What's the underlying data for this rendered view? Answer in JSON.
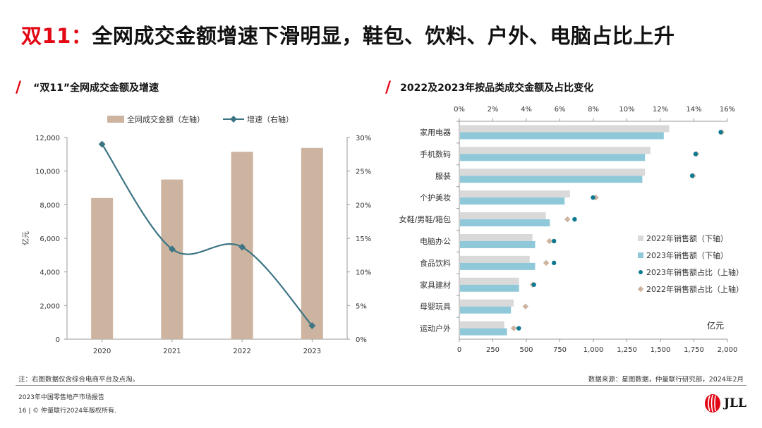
{
  "page": {
    "title_prefix": "双11：",
    "title_rest": "全网成交金额增速下滑明显，鞋包、饮料、户外、电脑占比上升",
    "note_left": "注：右图数据仅含综合电商平台及点淘。",
    "note_right": "数据来源：星图数据，仲量联行研究部，2024年2月",
    "footer_line1": "2023年中国零售地产市场报告",
    "footer_line2": "16 | © 仲量联行2024年版权所有.",
    "logo_text": "JLL",
    "accent_color": "#e30613"
  },
  "chart_data": [
    {
      "type": "bar+line",
      "title": "“双11”全网成交金额及增速",
      "categories": [
        "2020",
        "2021",
        "2022",
        "2023"
      ],
      "series": [
        {
          "name": "全网成交金额（左轴）",
          "type": "bar",
          "axis": "left",
          "values": [
            8400,
            9500,
            11150,
            11380
          ],
          "color": "#cdb4a0"
        },
        {
          "name": "增速（右轴）",
          "type": "line",
          "axis": "right",
          "values": [
            0.29,
            0.134,
            0.137,
            0.02
          ],
          "color": "#3d7585"
        }
      ],
      "ylabel": "亿元",
      "ylim": [
        0,
        12000
      ],
      "yticks": [
        "0",
        "2,000",
        "4,000",
        "6,000",
        "8,000",
        "10,000",
        "12,000"
      ],
      "y2lim": [
        0,
        0.3
      ],
      "y2ticks": [
        "0%",
        "5%",
        "10%",
        "15%",
        "20%",
        "25%",
        "30%"
      ],
      "legend_position": "top",
      "grid": false
    },
    {
      "type": "bar",
      "orientation": "horizontal",
      "title": "2022及2023年按品类成交金额及占比变化",
      "categories": [
        "家用电器",
        "手机数码",
        "服装",
        "个护美妆",
        "女鞋/男鞋/箱包",
        "电脑办公",
        "食品饮料",
        "家具建材",
        "母婴玩具",
        "运动户外"
      ],
      "series": [
        {
          "name": "2022年销售额（下轴）",
          "type": "bar",
          "axis": "bottom",
          "values": [
            1560,
            1420,
            1380,
            820,
            640,
            540,
            520,
            440,
            400,
            330
          ],
          "color": "#d9d9d9"
        },
        {
          "name": "2023年销售额（下轴）",
          "type": "bar",
          "axis": "bottom",
          "values": [
            1520,
            1380,
            1360,
            780,
            670,
            560,
            560,
            440,
            380,
            350
          ],
          "color": "#8fc8d8"
        },
        {
          "name": "2023年销售额占比（上轴）",
          "type": "scatter",
          "axis": "top",
          "values": [
            0.156,
            0.141,
            0.139,
            0.0798,
            0.0688,
            0.0565,
            0.0565,
            0.0445,
            null,
            0.0355
          ],
          "color": "#0e7a91"
        },
        {
          "name": "2022年销售额占比（上轴）",
          "type": "scatter",
          "axis": "top",
          "values": [
            0.1565,
            0.1415,
            0.1395,
            0.0815,
            0.0645,
            0.0538,
            0.0518,
            0.0438,
            0.0395,
            0.0325
          ],
          "color": "#cdb4a0"
        }
      ],
      "xlabel": "亿元",
      "xlim": [
        0,
        2000
      ],
      "xticks": [
        "0",
        "250",
        "500",
        "750",
        "1,000",
        "1,250",
        "1,500",
        "1,750",
        "2,000"
      ],
      "x2lim": [
        0,
        0.16
      ],
      "x2ticks": [
        "0%",
        "2%",
        "4%",
        "6%",
        "8%",
        "10%",
        "12%",
        "14%",
        "16%"
      ],
      "legend_position": "bottom-right",
      "grid": false
    }
  ]
}
